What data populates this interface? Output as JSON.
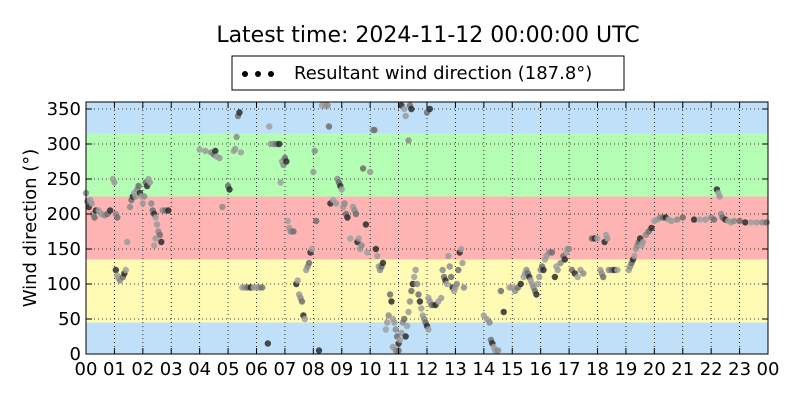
{
  "chart_data": {
    "type": "scatter",
    "title": "Latest time: 2024-11-12 00:00:00 UTC",
    "ylabel": "Wind direction (°)",
    "xlabel": "",
    "legend": {
      "label": "Resultant wind direction (187.8°)",
      "placement": "top-center"
    },
    "xlim": [
      0,
      24
    ],
    "ylim": [
      0,
      360
    ],
    "x_tick_labels": [
      "00",
      "01",
      "02",
      "03",
      "04",
      "05",
      "06",
      "07",
      "08",
      "09",
      "10",
      "11",
      "12",
      "13",
      "14",
      "15",
      "16",
      "17",
      "18",
      "19",
      "20",
      "21",
      "22",
      "23",
      "00"
    ],
    "y_ticks": [
      0,
      50,
      100,
      150,
      200,
      250,
      300,
      350
    ],
    "grid": true,
    "bands": [
      {
        "from": 0,
        "to": 45,
        "color": "#c0e0fa"
      },
      {
        "from": 45,
        "to": 135,
        "color": "#fffab4"
      },
      {
        "from": 135,
        "to": 225,
        "color": "#ffb4b4"
      },
      {
        "from": 225,
        "to": 315,
        "color": "#b4ffb4"
      },
      {
        "from": 315,
        "to": 360,
        "color": "#c0e0fa"
      }
    ],
    "points": [
      [
        0.0,
        230
      ],
      [
        0.05,
        218
      ],
      [
        0.1,
        210
      ],
      [
        0.15,
        220
      ],
      [
        0.2,
        215
      ],
      [
        0.25,
        200
      ],
      [
        0.3,
        195
      ],
      [
        0.35,
        205
      ],
      [
        0.45,
        205
      ],
      [
        0.55,
        200
      ],
      [
        0.65,
        198
      ],
      [
        0.75,
        200
      ],
      [
        0.85,
        205
      ],
      [
        0.95,
        250
      ],
      [
        1.0,
        245
      ],
      [
        1.05,
        200
      ],
      [
        1.1,
        195
      ],
      [
        1.05,
        120
      ],
      [
        1.1,
        112
      ],
      [
        1.15,
        108
      ],
      [
        1.2,
        105
      ],
      [
        1.3,
        110
      ],
      [
        1.35,
        115
      ],
      [
        1.4,
        120
      ],
      [
        1.45,
        160
      ],
      [
        1.55,
        210
      ],
      [
        1.6,
        220
      ],
      [
        1.65,
        225
      ],
      [
        1.7,
        230
      ],
      [
        1.75,
        225
      ],
      [
        1.8,
        235
      ],
      [
        1.85,
        240
      ],
      [
        1.9,
        230
      ],
      [
        1.95,
        225
      ],
      [
        2.0,
        215
      ],
      [
        2.05,
        225
      ],
      [
        2.1,
        245
      ],
      [
        2.15,
        240
      ],
      [
        2.2,
        250
      ],
      [
        2.25,
        245
      ],
      [
        2.3,
        215
      ],
      [
        2.35,
        205
      ],
      [
        2.4,
        200
      ],
      [
        2.45,
        195
      ],
      [
        2.5,
        185
      ],
      [
        2.55,
        175
      ],
      [
        2.6,
        170
      ],
      [
        2.65,
        160
      ],
      [
        2.4,
        155
      ],
      [
        2.45,
        165
      ],
      [
        2.7,
        205
      ],
      [
        2.8,
        205
      ],
      [
        2.9,
        205
      ],
      [
        4.0,
        292
      ],
      [
        4.2,
        290
      ],
      [
        4.4,
        288
      ],
      [
        4.5,
        285
      ],
      [
        4.55,
        290
      ],
      [
        4.6,
        282
      ],
      [
        4.7,
        280
      ],
      [
        4.8,
        210
      ],
      [
        5.0,
        240
      ],
      [
        5.05,
        235
      ],
      [
        5.2,
        290
      ],
      [
        5.25,
        293
      ],
      [
        5.3,
        310
      ],
      [
        5.35,
        340
      ],
      [
        5.4,
        345
      ],
      [
        5.45,
        288
      ],
      [
        5.5,
        95
      ],
      [
        5.6,
        95
      ],
      [
        5.7,
        95
      ],
      [
        5.8,
        95
      ],
      [
        5.9,
        95
      ],
      [
        6.0,
        95
      ],
      [
        6.1,
        95
      ],
      [
        6.2,
        95
      ],
      [
        6.4,
        15
      ],
      [
        6.45,
        325
      ],
      [
        6.5,
        300
      ],
      [
        6.6,
        300
      ],
      [
        6.7,
        300
      ],
      [
        6.8,
        300
      ],
      [
        6.85,
        245
      ],
      [
        6.9,
        275
      ],
      [
        6.95,
        270
      ],
      [
        7.0,
        280
      ],
      [
        7.05,
        275
      ],
      [
        7.1,
        190
      ],
      [
        7.15,
        180
      ],
      [
        7.2,
        175
      ],
      [
        7.3,
        175
      ],
      [
        7.4,
        100
      ],
      [
        7.45,
        105
      ],
      [
        7.5,
        85
      ],
      [
        7.55,
        80
      ],
      [
        7.6,
        75
      ],
      [
        7.65,
        55
      ],
      [
        7.7,
        50
      ],
      [
        7.75,
        120
      ],
      [
        7.8,
        125
      ],
      [
        7.85,
        130
      ],
      [
        7.9,
        145
      ],
      [
        7.95,
        150
      ],
      [
        8.0,
        260
      ],
      [
        8.05,
        290
      ],
      [
        8.1,
        190
      ],
      [
        8.2,
        5
      ],
      [
        8.3,
        355
      ],
      [
        8.4,
        355
      ],
      [
        8.5,
        355
      ],
      [
        8.55,
        325
      ],
      [
        8.6,
        215
      ],
      [
        8.7,
        220
      ],
      [
        8.8,
        215
      ],
      [
        8.85,
        250
      ],
      [
        8.9,
        245
      ],
      [
        8.95,
        240
      ],
      [
        9.0,
        235
      ],
      [
        9.05,
        210
      ],
      [
        9.1,
        215
      ],
      [
        9.15,
        200
      ],
      [
        9.2,
        195
      ],
      [
        9.3,
        165
      ],
      [
        9.4,
        210
      ],
      [
        9.45,
        205
      ],
      [
        9.5,
        200
      ],
      [
        9.55,
        160
      ],
      [
        9.6,
        165
      ],
      [
        9.65,
        150
      ],
      [
        9.7,
        155
      ],
      [
        9.75,
        265
      ],
      [
        9.85,
        185
      ],
      [
        9.9,
        145
      ],
      [
        10.0,
        260
      ],
      [
        10.1,
        320
      ],
      [
        10.15,
        320
      ],
      [
        10.2,
        150
      ],
      [
        10.25,
        140
      ],
      [
        10.3,
        125
      ],
      [
        10.35,
        120
      ],
      [
        10.4,
        125
      ],
      [
        10.45,
        130
      ],
      [
        10.55,
        35
      ],
      [
        10.6,
        45
      ],
      [
        10.65,
        55
      ],
      [
        10.7,
        85
      ],
      [
        10.75,
        75
      ],
      [
        10.8,
        50
      ],
      [
        10.85,
        45
      ],
      [
        10.9,
        35
      ],
      [
        10.95,
        25
      ],
      [
        11.0,
        15
      ],
      [
        11.05,
        20
      ],
      [
        11.1,
        30
      ],
      [
        11.15,
        45
      ],
      [
        11.2,
        50
      ],
      [
        11.25,
        25
      ],
      [
        11.3,
        40
      ],
      [
        11.35,
        60
      ],
      [
        11.4,
        75
      ],
      [
        11.45,
        90
      ],
      [
        11.5,
        100
      ],
      [
        11.55,
        110
      ],
      [
        11.6,
        120
      ],
      [
        11.65,
        100
      ],
      [
        11.7,
        85
      ],
      [
        11.75,
        75
      ],
      [
        11.8,
        65
      ],
      [
        11.85,
        55
      ],
      [
        11.9,
        50
      ],
      [
        11.95,
        45
      ],
      [
        12.0,
        40
      ],
      [
        12.05,
        35
      ],
      [
        10.8,
        10
      ],
      [
        10.9,
        5
      ],
      [
        11.0,
        5
      ],
      [
        11.1,
        355
      ],
      [
        11.2,
        350
      ],
      [
        11.25,
        340
      ],
      [
        11.35,
        305
      ],
      [
        11.4,
        355
      ],
      [
        11.45,
        350
      ],
      [
        12.05,
        80
      ],
      [
        12.1,
        75
      ],
      [
        12.15,
        70
      ],
      [
        12.2,
        70
      ],
      [
        12.3,
        70
      ],
      [
        12.4,
        75
      ],
      [
        12.5,
        80
      ],
      [
        12.55,
        120
      ],
      [
        12.6,
        110
      ],
      [
        12.65,
        105
      ],
      [
        12.7,
        100
      ],
      [
        12.75,
        140
      ],
      [
        12.8,
        125
      ],
      [
        12.85,
        110
      ],
      [
        12.9,
        95
      ],
      [
        12.95,
        90
      ],
      [
        13.0,
        95
      ],
      [
        13.05,
        100
      ],
      [
        13.1,
        120
      ],
      [
        13.15,
        145
      ],
      [
        13.2,
        150
      ],
      [
        13.25,
        130
      ],
      [
        13.3,
        95
      ],
      [
        12.0,
        345
      ],
      [
        12.1,
        350
      ],
      [
        14.0,
        55
      ],
      [
        14.1,
        50
      ],
      [
        14.2,
        45
      ],
      [
        14.25,
        20
      ],
      [
        14.3,
        15
      ],
      [
        14.35,
        10
      ],
      [
        14.4,
        5
      ],
      [
        14.5,
        5
      ],
      [
        14.6,
        90
      ],
      [
        14.7,
        60
      ],
      [
        14.9,
        95
      ],
      [
        15.0,
        95
      ],
      [
        15.1,
        90
      ],
      [
        15.2,
        95
      ],
      [
        15.3,
        100
      ],
      [
        15.4,
        110
      ],
      [
        15.45,
        115
      ],
      [
        15.5,
        120
      ],
      [
        15.55,
        115
      ],
      [
        15.6,
        110
      ],
      [
        15.65,
        105
      ],
      [
        15.7,
        100
      ],
      [
        15.75,
        95
      ],
      [
        15.8,
        90
      ],
      [
        15.85,
        85
      ],
      [
        15.9,
        100
      ],
      [
        15.95,
        110
      ],
      [
        16.0,
        120
      ],
      [
        16.05,
        125
      ],
      [
        16.1,
        120
      ],
      [
        16.15,
        135
      ],
      [
        16.2,
        140
      ],
      [
        16.3,
        145
      ],
      [
        16.4,
        145
      ],
      [
        16.5,
        110
      ],
      [
        16.55,
        125
      ],
      [
        16.6,
        120
      ],
      [
        16.7,
        130
      ],
      [
        16.8,
        140
      ],
      [
        16.85,
        135
      ],
      [
        16.9,
        145
      ],
      [
        16.95,
        150
      ],
      [
        17.0,
        150
      ],
      [
        17.1,
        120
      ],
      [
        17.2,
        115
      ],
      [
        17.3,
        110
      ],
      [
        17.4,
        120
      ],
      [
        17.5,
        115
      ],
      [
        17.8,
        165
      ],
      [
        17.9,
        165
      ],
      [
        18.0,
        165
      ],
      [
        18.1,
        120
      ],
      [
        18.15,
        115
      ],
      [
        18.2,
        110
      ],
      [
        18.25,
        160
      ],
      [
        18.3,
        170
      ],
      [
        18.35,
        165
      ],
      [
        18.4,
        120
      ],
      [
        18.5,
        120
      ],
      [
        18.6,
        120
      ],
      [
        18.7,
        120
      ],
      [
        19.1,
        120
      ],
      [
        19.15,
        125
      ],
      [
        19.2,
        130
      ],
      [
        19.25,
        135
      ],
      [
        19.3,
        140
      ],
      [
        19.35,
        150
      ],
      [
        19.4,
        155
      ],
      [
        19.45,
        160
      ],
      [
        19.5,
        165
      ],
      [
        19.55,
        155
      ],
      [
        19.6,
        160
      ],
      [
        19.7,
        170
      ],
      [
        19.8,
        175
      ],
      [
        19.9,
        180
      ],
      [
        20.0,
        190
      ],
      [
        20.1,
        192
      ],
      [
        20.2,
        195
      ],
      [
        20.3,
        195
      ],
      [
        20.4,
        195
      ],
      [
        20.5,
        192
      ],
      [
        20.6,
        190
      ],
      [
        20.8,
        192
      ],
      [
        21.0,
        195
      ],
      [
        21.4,
        192
      ],
      [
        21.6,
        192
      ],
      [
        21.8,
        192
      ],
      [
        22.0,
        195
      ],
      [
        22.1,
        192
      ],
      [
        22.2,
        235
      ],
      [
        22.25,
        230
      ],
      [
        22.3,
        225
      ],
      [
        22.35,
        200
      ],
      [
        22.4,
        195
      ],
      [
        22.5,
        192
      ],
      [
        22.6,
        190
      ],
      [
        22.7,
        188
      ],
      [
        22.8,
        190
      ],
      [
        23.0,
        190
      ],
      [
        23.2,
        188
      ],
      [
        23.4,
        188
      ],
      [
        23.6,
        188
      ],
      [
        23.8,
        188
      ],
      [
        23.95,
        188
      ]
    ]
  }
}
